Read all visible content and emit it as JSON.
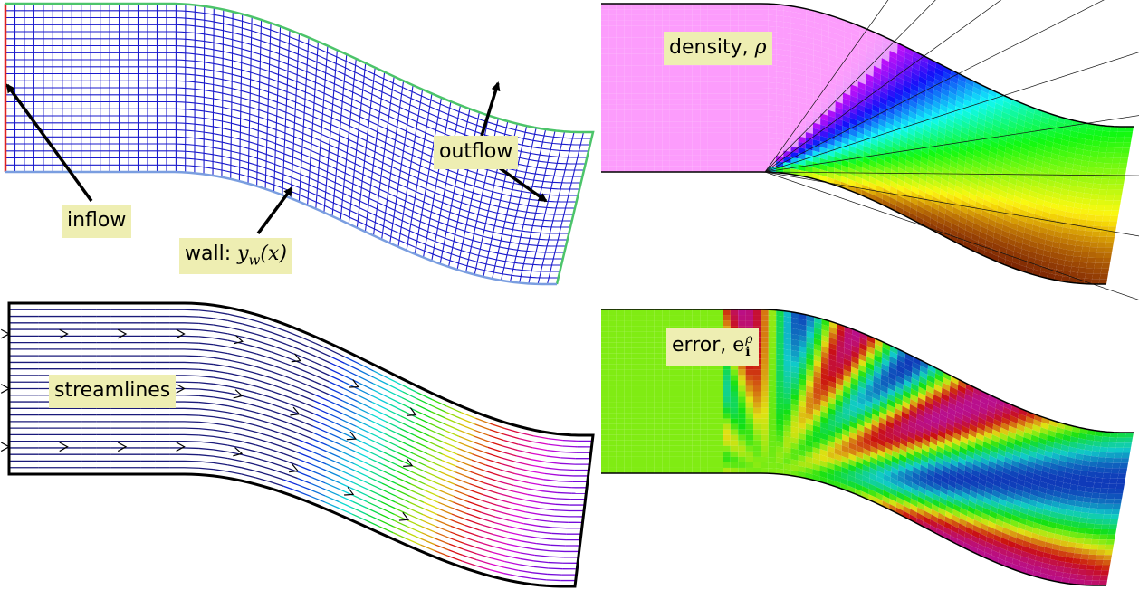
{
  "panels": {
    "grid": {
      "labels": {
        "inflow": "inflow",
        "outflow": "outflow",
        "wall_prefix": "wall: ",
        "wall_formula": "y",
        "wall_subscript": "w",
        "wall_arg": "(x)"
      },
      "colors": {
        "grid": "#1a1acc",
        "inflow": "#e02020",
        "outflow": "#4cc46a",
        "wall": "#7a9ee0"
      }
    },
    "density": {
      "label_prefix": "density, ",
      "label_symbol": "ρ"
    },
    "streamlines": {
      "label": "streamlines"
    },
    "error": {
      "label_prefix": "error, ",
      "label_symbol": "e",
      "label_superscript": "ρ",
      "label_subscript": "i"
    }
  },
  "colors": {
    "label_bg": "#eeeeb2"
  }
}
